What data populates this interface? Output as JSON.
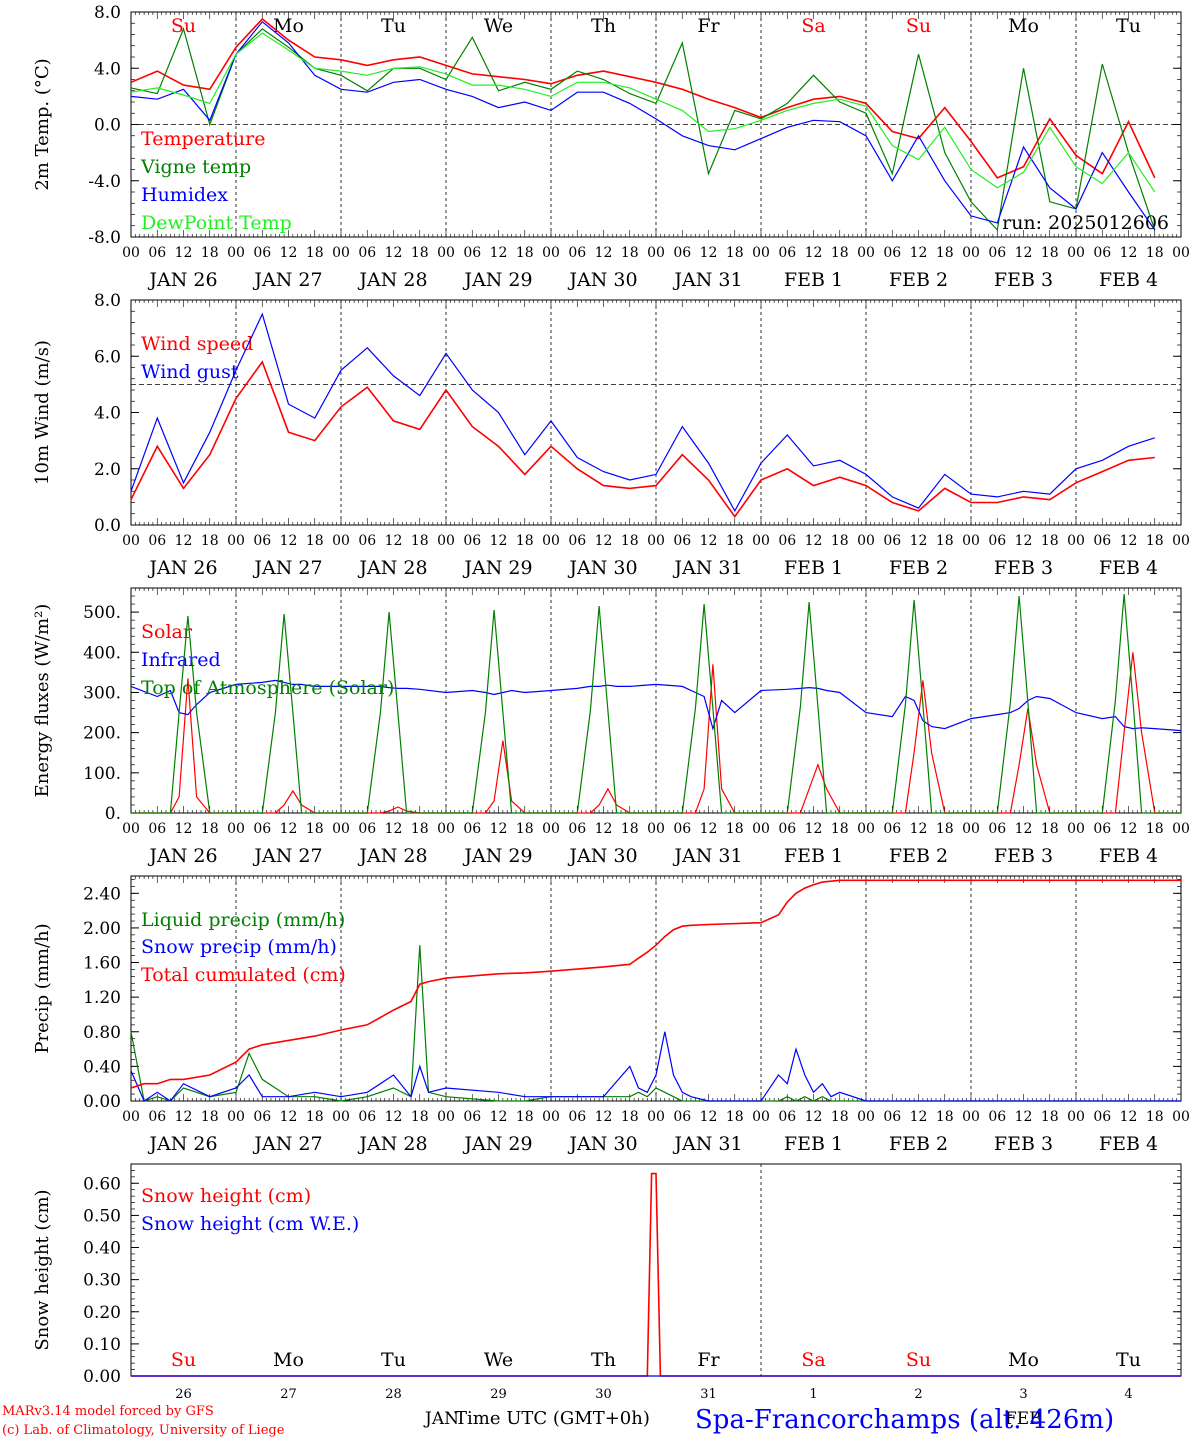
{
  "days": [
    "JAN 26",
    "JAN 27",
    "JAN 28",
    "JAN 29",
    "JAN 30",
    "JAN 31",
    "FEB  1",
    "FEB  2",
    "FEB  3",
    "FEB  4"
  ],
  "weekdays": [
    {
      "label": "Su",
      "color": "#ff0000"
    },
    {
      "label": "Mo",
      "color": "#000000"
    },
    {
      "label": "Tu",
      "color": "#000000"
    },
    {
      "label": "We",
      "color": "#000000"
    },
    {
      "label": "Th",
      "color": "#000000"
    },
    {
      "label": "Fr",
      "color": "#000000"
    },
    {
      "label": "Sa",
      "color": "#ff0000"
    },
    {
      "label": "Su",
      "color": "#ff0000"
    },
    {
      "label": "Mo",
      "color": "#000000"
    },
    {
      "label": "Tu",
      "color": "#000000"
    }
  ],
  "hour_labels": [
    "00",
    "06",
    "12",
    "18"
  ],
  "final_hour_label": "00",
  "bottom_days": [
    "26",
    "27",
    "28",
    "29",
    "30",
    "31",
    "1",
    "2",
    "3",
    "4"
  ],
  "bottom_months": [
    "JAN",
    "FEB"
  ],
  "run_label": "run: 2025012606",
  "x_axis_title": "Time UTC (GMT+0h)",
  "location_title": "Spa-Francorchamps (alt. 426m)",
  "credit_line1": "MARv3.14 model forced by GFS",
  "credit_line2": "(c) Lab. of Climatology, University of Liege",
  "colors": {
    "red": "#ff0000",
    "green": "#008000",
    "blue": "#0000ff",
    "lightgreen": "#22ee22",
    "black": "#000000"
  },
  "chart_data": [
    {
      "type": "line",
      "ylabel": "2m Temp. (°C)",
      "ylim": [
        -8,
        8
      ],
      "ticks": [
        "8.0",
        "4.0",
        "0.0",
        "-4.0",
        "-8.0"
      ],
      "tick_values": [
        8,
        4,
        0,
        -4,
        -8
      ],
      "reference_line": 0,
      "x": [
        0,
        6,
        12,
        18,
        24,
        30,
        36,
        42,
        48,
        54,
        60,
        66,
        72,
        78,
        84,
        90,
        96,
        102,
        108,
        114,
        120,
        126,
        132,
        138,
        144,
        150,
        156,
        162,
        168,
        174,
        180,
        186,
        192,
        198,
        204,
        210,
        216,
        222,
        228,
        234
      ],
      "series": [
        {
          "name": "Temperature",
          "color": "red",
          "values": [
            3,
            3.8,
            2.8,
            2.5,
            5.5,
            7.5,
            6,
            4.8,
            4.6,
            4.2,
            4.6,
            4.8,
            4.2,
            3.6,
            3.4,
            3.2,
            2.9,
            3.5,
            3.8,
            3.4,
            3,
            2.5,
            1.8,
            1.2,
            0.5,
            1.2,
            1.8,
            2,
            1.5,
            -0.5,
            -1,
            1.2,
            -1.2,
            -3.8,
            -3,
            0.4,
            -2.2,
            -3.5,
            0.2,
            -3.8
          ]
        },
        {
          "name": "Vigne temp",
          "color": "green",
          "values": [
            2.6,
            2.2,
            6.8,
            0,
            5,
            6.8,
            5.5,
            4,
            3.5,
            2.4,
            4,
            4,
            3.2,
            6.2,
            2.4,
            3,
            2.5,
            3.8,
            3.2,
            2.2,
            1.5,
            5.8,
            -3.5,
            1,
            0.4,
            1.5,
            3.5,
            1.6,
            0.8,
            -3.5,
            5,
            -2,
            -5.5,
            -7.5,
            4,
            -5.5,
            -6,
            4.3,
            -2,
            -7.5
          ]
        },
        {
          "name": "Humidex",
          "color": "blue",
          "values": [
            2,
            1.8,
            2.5,
            0.3,
            5,
            7.3,
            5.8,
            3.5,
            2.5,
            2.3,
            3,
            3.2,
            2.5,
            2,
            1.2,
            1.6,
            1,
            2.3,
            2.3,
            1.5,
            0.4,
            -0.8,
            -1.5,
            -1.8,
            -1,
            -0.2,
            0.3,
            0.2,
            -0.8,
            -4,
            -0.8,
            -4,
            -6.5,
            -7,
            -1.6,
            -4.5,
            -6,
            -2,
            -4.8,
            -7.5
          ]
        },
        {
          "name": "DewPoint Temp",
          "color": "lightgreen",
          "values": [
            2.3,
            2.6,
            2.1,
            1.5,
            5,
            6.5,
            5.3,
            4,
            3.8,
            3.5,
            4,
            4.1,
            3.6,
            2.8,
            2.8,
            2.5,
            2,
            3,
            3,
            2.6,
            1.8,
            1,
            -0.5,
            -0.3,
            0.3,
            1,
            1.5,
            1.8,
            1.3,
            -1.5,
            -2.5,
            -0.2,
            -3.2,
            -4.5,
            -3.4,
            -0.2,
            -3,
            -4.2,
            -2,
            -4.8
          ]
        }
      ]
    },
    {
      "type": "line",
      "ylabel": "10m Wind (m/s)",
      "ylim": [
        0,
        8
      ],
      "ticks": [
        "8.0",
        "6.0",
        "4.0",
        "2.0",
        "0.0"
      ],
      "tick_values": [
        8,
        6,
        4,
        2,
        0
      ],
      "reference_line": 5,
      "x": [
        0,
        6,
        12,
        18,
        24,
        30,
        36,
        42,
        48,
        54,
        60,
        66,
        72,
        78,
        84,
        90,
        96,
        102,
        108,
        114,
        120,
        126,
        132,
        138,
        144,
        150,
        156,
        162,
        168,
        174,
        180,
        186,
        192,
        198,
        204,
        210,
        216,
        222,
        228,
        234
      ],
      "series": [
        {
          "name": "Wind speed",
          "color": "red",
          "values": [
            0.9,
            2.8,
            1.3,
            2.5,
            4.5,
            5.8,
            3.3,
            3,
            4.2,
            4.9,
            3.7,
            3.4,
            4.8,
            3.5,
            2.8,
            1.8,
            2.8,
            2,
            1.4,
            1.3,
            1.4,
            2.5,
            1.6,
            0.3,
            1.6,
            2,
            1.4,
            1.7,
            1.4,
            0.8,
            0.5,
            1.3,
            0.8,
            0.8,
            1,
            0.9,
            1.5,
            1.9,
            2.3,
            2.4
          ]
        },
        {
          "name": "Wind gust",
          "color": "blue",
          "values": [
            1.2,
            3.8,
            1.5,
            3.3,
            5.5,
            7.5,
            4.3,
            3.8,
            5.5,
            6.3,
            5.3,
            4.6,
            6.1,
            4.8,
            4,
            2.5,
            3.7,
            2.4,
            1.9,
            1.6,
            1.8,
            3.5,
            2.2,
            0.5,
            2.2,
            3.2,
            2.1,
            2.3,
            1.8,
            1,
            0.6,
            1.8,
            1.1,
            1,
            1.2,
            1.1,
            2,
            2.3,
            2.8,
            3.1
          ]
        }
      ]
    },
    {
      "type": "line",
      "ylabel": "Energy fluxes (W/m²)",
      "ylim": [
        0,
        560
      ],
      "ticks": [
        "500.",
        "400.",
        "300.",
        "200.",
        "100.",
        "0."
      ],
      "tick_values": [
        500,
        400,
        300,
        200,
        100,
        0
      ],
      "x": [
        0,
        6,
        9,
        11,
        13,
        15,
        18,
        24,
        30,
        33,
        35,
        37,
        39,
        42,
        48,
        54,
        57,
        59,
        61,
        63,
        66,
        72,
        78,
        81,
        83,
        85,
        87,
        90,
        96,
        102,
        105,
        107,
        109,
        111,
        114,
        120,
        126,
        129,
        131,
        133,
        135,
        138,
        144,
        150,
        153,
        155,
        157,
        159,
        162,
        168,
        174,
        177,
        179,
        181,
        183,
        186,
        192,
        198,
        201,
        203,
        205,
        207,
        210,
        216,
        222,
        225,
        227,
        229,
        231,
        234,
        240
      ],
      "series": [
        {
          "name": "Solar",
          "color": "red",
          "values": [
            0,
            0,
            0,
            40,
            335,
            40,
            0,
            0,
            0,
            0,
            20,
            55,
            20,
            0,
            0,
            0,
            0,
            5,
            15,
            5,
            0,
            0,
            0,
            0,
            30,
            180,
            30,
            0,
            0,
            0,
            0,
            20,
            60,
            20,
            0,
            0,
            0,
            0,
            60,
            370,
            60,
            0,
            0,
            0,
            0,
            60,
            120,
            60,
            0,
            0,
            0,
            0,
            150,
            330,
            150,
            0,
            0,
            0,
            0,
            120,
            260,
            120,
            0,
            0,
            0,
            0,
            200,
            400,
            200,
            0,
            0
          ]
        },
        {
          "name": "Infrared",
          "color": "blue",
          "values": [
            315,
            290,
            305,
            250,
            245,
            270,
            300,
            320,
            325,
            330,
            325,
            320,
            320,
            315,
            315,
            315,
            315,
            312,
            310,
            310,
            308,
            300,
            305,
            300,
            295,
            300,
            305,
            300,
            305,
            310,
            315,
            315,
            318,
            315,
            315,
            320,
            315,
            300,
            290,
            210,
            280,
            250,
            305,
            308,
            310,
            312,
            310,
            305,
            300,
            250,
            240,
            290,
            280,
            230,
            215,
            210,
            235,
            245,
            250,
            260,
            280,
            290,
            285,
            250,
            235,
            240,
            215,
            210,
            212,
            210,
            205
          ]
        },
        {
          "name": "Top of Atmosphere (Solar)",
          "color": "green",
          "values": [
            0,
            0,
            0,
            250,
            490,
            250,
            0,
            0,
            0,
            250,
            495,
            250,
            0,
            0,
            0,
            0,
            250,
            500,
            250,
            0,
            0,
            0,
            0,
            250,
            505,
            250,
            0,
            0,
            0,
            0,
            255,
            515,
            255,
            0,
            0,
            0,
            0,
            260,
            520,
            260,
            0,
            0,
            0,
            0,
            265,
            525,
            265,
            0,
            0,
            0,
            0,
            270,
            530,
            270,
            0,
            0,
            0,
            0,
            275,
            540,
            275,
            0,
            0,
            0,
            0,
            280,
            545,
            280,
            0,
            0,
            0
          ]
        }
      ]
    },
    {
      "type": "line",
      "ylabel": "Precip (mm/h)",
      "ylim": [
        0,
        2.6
      ],
      "ticks": [
        "2.40",
        "2.00",
        "1.60",
        "1.20",
        "0.80",
        "0.40",
        "0.00"
      ],
      "tick_values": [
        2.4,
        2,
        1.6,
        1.2,
        0.8,
        0.4,
        0
      ],
      "x": [
        0,
        3,
        6,
        9,
        12,
        18,
        24,
        27,
        30,
        36,
        42,
        48,
        54,
        60,
        64,
        66,
        68,
        72,
        84,
        90,
        96,
        108,
        114,
        116,
        118,
        120,
        122,
        124,
        126,
        128,
        132,
        144,
        148,
        150,
        152,
        154,
        156,
        158,
        160,
        162,
        168,
        174,
        180,
        186,
        192,
        198,
        204,
        210,
        216,
        222,
        228,
        234,
        240
      ],
      "series": [
        {
          "name": "Liquid precip (mm/h)",
          "color": "green",
          "values": [
            0.8,
            0,
            0.05,
            0,
            0.15,
            0.05,
            0.1,
            0.55,
            0.25,
            0.05,
            0.05,
            0,
            0.05,
            0.15,
            0.05,
            1.8,
            0.1,
            0.05,
            0,
            0,
            0.05,
            0.05,
            0.05,
            0.1,
            0.05,
            0.15,
            0.1,
            0.05,
            0,
            0,
            0,
            0,
            0,
            0.05,
            0,
            0.05,
            0,
            0.05,
            0,
            0,
            0,
            0,
            0,
            0,
            0,
            0,
            0,
            0,
            0,
            0,
            0,
            0,
            0
          ]
        },
        {
          "name": "Snow precip (mm/h)",
          "color": "blue",
          "values": [
            0.35,
            0,
            0.1,
            0,
            0.2,
            0.05,
            0.15,
            0.3,
            0.05,
            0.05,
            0.1,
            0.05,
            0.1,
            0.3,
            0.05,
            0.4,
            0.1,
            0.15,
            0.1,
            0.05,
            0.05,
            0.05,
            0.4,
            0.15,
            0.1,
            0.3,
            0.8,
            0.3,
            0.1,
            0.05,
            0,
            0,
            0.3,
            0.2,
            0.6,
            0.3,
            0.1,
            0.2,
            0.05,
            0.1,
            0,
            0,
            0,
            0,
            0,
            0,
            0,
            0,
            0,
            0,
            0,
            0,
            0
          ]
        },
        {
          "name": "Total cumulated (cm)",
          "color": "red",
          "values": [
            0.15,
            0.2,
            0.2,
            0.25,
            0.25,
            0.3,
            0.45,
            0.6,
            0.65,
            0.7,
            0.75,
            0.82,
            0.88,
            1.05,
            1.15,
            1.35,
            1.38,
            1.42,
            1.47,
            1.48,
            1.5,
            1.55,
            1.58,
            1.65,
            1.72,
            1.8,
            1.9,
            1.98,
            2.02,
            2.03,
            2.04,
            2.06,
            2.15,
            2.3,
            2.4,
            2.46,
            2.5,
            2.53,
            2.54,
            2.55,
            2.55,
            2.55,
            2.55,
            2.55,
            2.55,
            2.55,
            2.55,
            2.55,
            2.55,
            2.55,
            2.55,
            2.55,
            2.55
          ]
        }
      ]
    },
    {
      "type": "line",
      "ylabel": "Snow height (cm)",
      "ylim": [
        0,
        0.66
      ],
      "ticks": [
        "0.60",
        "0.50",
        "0.40",
        "0.30",
        "0.20",
        "0.10",
        "0.00"
      ],
      "tick_values": [
        0.6,
        0.5,
        0.4,
        0.3,
        0.2,
        0.1,
        0
      ],
      "x": [
        0,
        118,
        119,
        120,
        121,
        240
      ],
      "series": [
        {
          "name": "Snow height (cm)",
          "color": "red",
          "values": [
            0,
            0,
            0.63,
            0.63,
            0,
            0
          ]
        },
        {
          "name": "Snow height (cm W.E.)",
          "color": "blue",
          "values": [
            0,
            0,
            0,
            0,
            0,
            0
          ]
        }
      ]
    }
  ]
}
